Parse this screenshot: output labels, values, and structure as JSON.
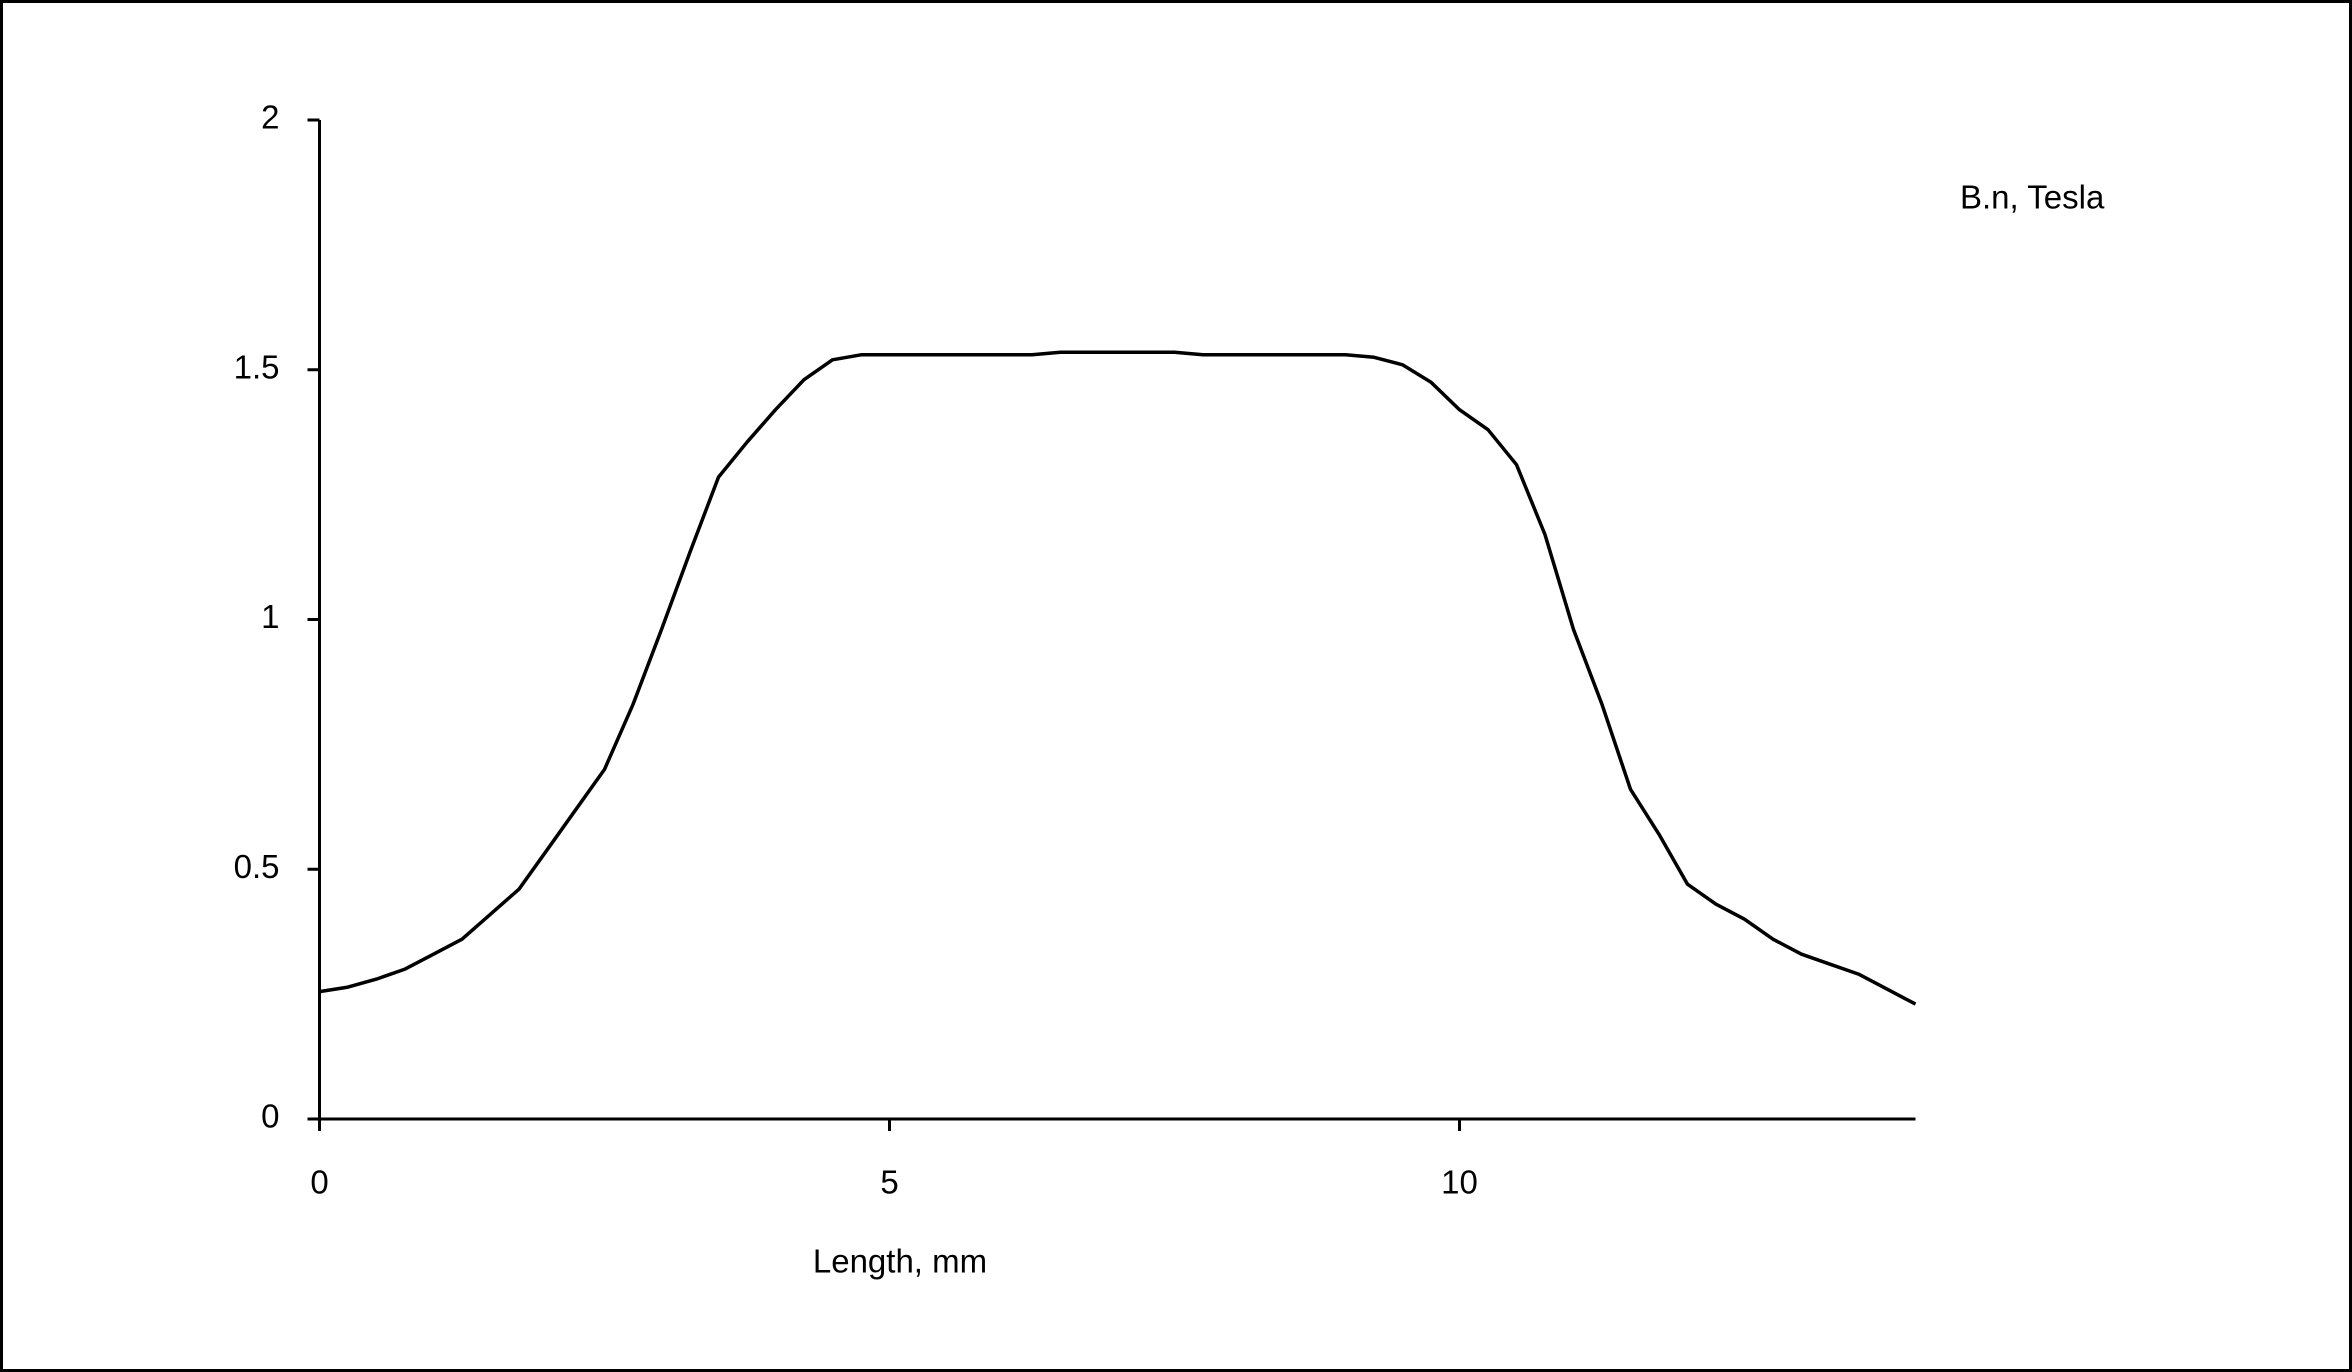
{
  "chart_data": {
    "type": "line",
    "xlabel": "Length, mm",
    "x": [
      0,
      0.25,
      0.5,
      0.75,
      1,
      1.25,
      1.5,
      1.75,
      2,
      2.25,
      2.5,
      2.75,
      3,
      3.25,
      3.5,
      3.75,
      4,
      4.25,
      4.5,
      4.75,
      5,
      5.25,
      5.5,
      5.75,
      6,
      6.25,
      6.5,
      6.75,
      7,
      7.25,
      7.5,
      7.75,
      8,
      8.25,
      8.5,
      8.75,
      9,
      9.25,
      9.5,
      9.75,
      10,
      10.25,
      10.5,
      10.75,
      11,
      11.25,
      11.5,
      11.75,
      12,
      12.25,
      12.5,
      12.75,
      13,
      13.25,
      13.5,
      13.75,
      14
    ],
    "series": [
      {
        "name": "B.n, Tesla",
        "color": "#000000",
        "values": [
          0.255,
          0.264,
          0.28,
          0.3,
          0.33,
          0.36,
          0.41,
          0.46,
          0.54,
          0.62,
          0.7,
          0.83,
          0.98,
          1.135,
          1.285,
          1.355,
          1.42,
          1.48,
          1.52,
          1.53,
          1.53,
          1.53,
          1.53,
          1.53,
          1.53,
          1.53,
          1.535,
          1.535,
          1.535,
          1.535,
          1.535,
          1.53,
          1.53,
          1.53,
          1.53,
          1.53,
          1.53,
          1.525,
          1.51,
          1.475,
          1.42,
          1.38,
          1.31,
          1.17,
          0.98,
          0.83,
          0.66,
          0.57,
          0.47,
          0.43,
          0.4,
          0.36,
          0.33,
          0.31,
          0.29,
          0.26,
          0.23
        ]
      }
    ],
    "xlim": [
      0,
      14
    ],
    "xticks": [
      0,
      5,
      10
    ],
    "ylim": [
      0,
      2
    ],
    "yticks": [
      0,
      0.5,
      1,
      1.5,
      2
    ]
  }
}
